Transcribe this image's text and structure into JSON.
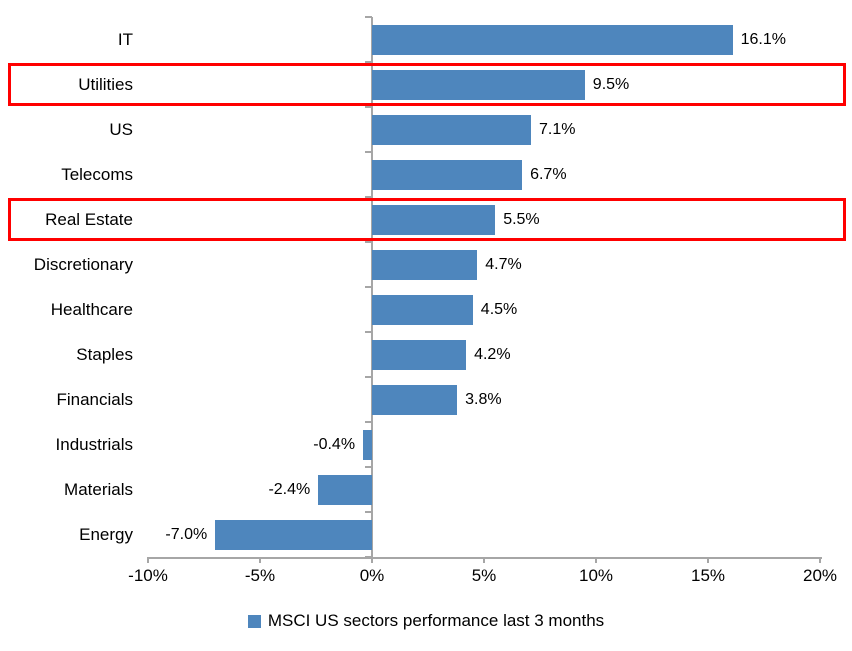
{
  "chart_data": {
    "type": "bar",
    "orientation": "horizontal",
    "title": "",
    "categories": [
      "IT",
      "Utilities",
      "US",
      "Telecoms",
      "Real Estate",
      "Discretionary",
      "Healthcare",
      "Staples",
      "Financials",
      "Industrials",
      "Materials",
      "Energy"
    ],
    "values": [
      16.1,
      9.5,
      7.1,
      6.7,
      5.5,
      4.7,
      4.5,
      4.2,
      3.8,
      -0.4,
      -2.4,
      -7.0
    ],
    "value_labels": [
      "16.1%",
      "9.5%",
      "7.1%",
      "6.7%",
      "5.5%",
      "4.7%",
      "4.5%",
      "4.2%",
      "3.8%",
      "-0.4%",
      "-2.4%",
      "-7.0%"
    ],
    "highlighted_categories": [
      "Utilities",
      "Real Estate"
    ],
    "legend": "MSCI US sectors performance last 3 months",
    "legend_position": "bottom-center",
    "xlim": [
      -10,
      20
    ],
    "x_ticks": [
      -10,
      -5,
      0,
      5,
      10,
      15,
      20
    ],
    "x_tick_labels": [
      "-10%",
      "-5%",
      "0%",
      "5%",
      "10%",
      "15%",
      "20%"
    ],
    "grid": false,
    "colors": {
      "bar": "#4e86bd",
      "highlight_box": "#ff0000",
      "axis": "#a6a6a6",
      "text": "#000000"
    }
  }
}
